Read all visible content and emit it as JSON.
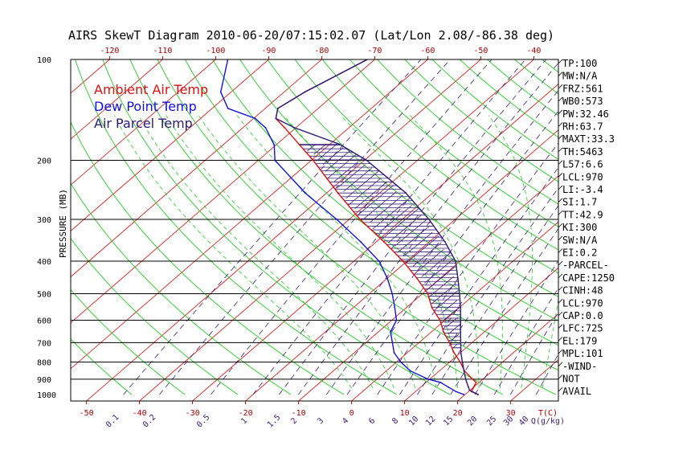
{
  "title": "AIRS SkewT Diagram 2010-06-20/07:15:02.07 (Lat/Lon 2.08/-86.38 deg)",
  "colors": {
    "ambient": "#dd1111",
    "dewpoint": "#1111dd",
    "parcel": "#2a1a7a",
    "isotherm": "#dd2222",
    "dry_adiabat": "#22cc22",
    "moist_adiabat": "#22cc22",
    "mixing_ratio": "#3c1e78",
    "isobar": "#000000",
    "hatch": "#3c1e78"
  },
  "legend": [
    {
      "label": "Ambient Air Temp",
      "color": "#dd1111"
    },
    {
      "label": "Dew Point Temp",
      "color": "#1111dd"
    },
    {
      "label": "Air Parcel Temp",
      "color": "#2a1a7a"
    }
  ],
  "indices": [
    "TP:100",
    "MW:N/A",
    "FRZ:561",
    "WB0:573",
    "PW:32.46",
    "RH:63.7",
    "MAXT:33.3",
    "TH:5463",
    "L57:6.6",
    "LCL:970",
    "LI:-3.4",
    "SI:1.7",
    "TT:42.9",
    "KI:300",
    "SW:N/A",
    "EI:0.2",
    "-PARCEL-",
    "CAPE:1250",
    "CINH:48",
    "LCL:970",
    "CAP:0.0",
    "LFC:725",
    "EL:179",
    "MPL:101",
    "-WIND-",
    "NOT",
    "AVAIL"
  ],
  "chart_data": {
    "type": "line",
    "title": "AIRS SkewT Diagram 2010-06-20/07:15:02.07 (Lat/Lon 2.08/-86.38 deg)",
    "ylabel": "PRESSURE (MB)",
    "xlabel": "T(C)",
    "mixing_ratio_label": "Q(g/kg)",
    "y_scale": "log",
    "ylim": [
      1000,
      100
    ],
    "xlim_bottom": [
      -50,
      30
    ],
    "xlim_top": [
      -120,
      -40
    ],
    "y_ticks": [
      100,
      200,
      300,
      400,
      500,
      600,
      700,
      800,
      900,
      1000
    ],
    "isobars": [
      200,
      300,
      400,
      500,
      600,
      700,
      800,
      900
    ],
    "bottom_ticks": [
      -50,
      -40,
      -30,
      -20,
      -10,
      0,
      10,
      20,
      30
    ],
    "top_ticks": [
      -120,
      -110,
      -100,
      -90,
      -80,
      -70,
      -60,
      -50,
      -40
    ],
    "mixing_ratio_labels": [
      "0.1",
      "0.2",
      "0.5",
      "1",
      "1.5",
      "2",
      "3",
      "4",
      "6",
      "8",
      "10",
      "12",
      "15",
      "20",
      "25",
      "30",
      "40"
    ],
    "series": [
      {
        "name": "Ambient Air Temp",
        "points": [
          [
            1000,
            25.3
          ],
          [
            980,
            23.4
          ],
          [
            950,
            22.8
          ],
          [
            920,
            22.2
          ],
          [
            900,
            20.8
          ],
          [
            850,
            17.4
          ],
          [
            800,
            14.6
          ],
          [
            750,
            11.3
          ],
          [
            700,
            8.2
          ],
          [
            650,
            4.6
          ],
          [
            600,
            1.3
          ],
          [
            550,
            -3.1
          ],
          [
            500,
            -7.0
          ],
          [
            450,
            -12.5
          ],
          [
            400,
            -19.0
          ],
          [
            350,
            -27.0
          ],
          [
            300,
            -36.6
          ],
          [
            250,
            -46.8
          ],
          [
            200,
            -58.8
          ],
          [
            180,
            -64.8
          ],
          [
            160,
            -71.5
          ],
          [
            150,
            -75.3
          ],
          [
            140,
            -77.2
          ],
          [
            125,
            -75.8
          ],
          [
            100,
            -71.4
          ]
        ]
      },
      {
        "name": "Dew Point Temp",
        "points": [
          [
            1000,
            22.6
          ],
          [
            980,
            20.5
          ],
          [
            950,
            18.0
          ],
          [
            920,
            15.5
          ],
          [
            900,
            12.4
          ],
          [
            850,
            7.2
          ],
          [
            800,
            3.4
          ],
          [
            750,
            0.0
          ],
          [
            700,
            -2.6
          ],
          [
            650,
            -5.4
          ],
          [
            600,
            -6.9
          ],
          [
            550,
            -10.1
          ],
          [
            500,
            -13.7
          ],
          [
            450,
            -18.1
          ],
          [
            400,
            -23.5
          ],
          [
            350,
            -31.4
          ],
          [
            300,
            -41.0
          ],
          [
            250,
            -53.0
          ],
          [
            200,
            -66.0
          ],
          [
            180,
            -69.6
          ],
          [
            160,
            -75.1
          ],
          [
            150,
            -79.2
          ],
          [
            140,
            -86.6
          ],
          [
            125,
            -91.7
          ],
          [
            100,
            -97.7
          ]
        ]
      },
      {
        "name": "Air Parcel Temp",
        "points": [
          [
            1000,
            25.3
          ],
          [
            970,
            22.7
          ],
          [
            950,
            21.8
          ],
          [
            900,
            19.5
          ],
          [
            850,
            17.3
          ],
          [
            800,
            15.0
          ],
          [
            750,
            12.6
          ],
          [
            700,
            10.3
          ],
          [
            650,
            7.8
          ],
          [
            600,
            5.2
          ],
          [
            550,
            2.3
          ],
          [
            500,
            -1.0
          ],
          [
            450,
            -4.8
          ],
          [
            400,
            -9.1
          ],
          [
            350,
            -15.5
          ],
          [
            300,
            -23.6
          ],
          [
            250,
            -34.0
          ],
          [
            200,
            -48.7
          ],
          [
            179,
            -57.5
          ],
          [
            160,
            -69.6
          ],
          [
            150,
            -75.3
          ],
          [
            140,
            -77.2
          ],
          [
            125,
            -75.8
          ],
          [
            100,
            -71.4
          ]
        ]
      }
    ]
  }
}
